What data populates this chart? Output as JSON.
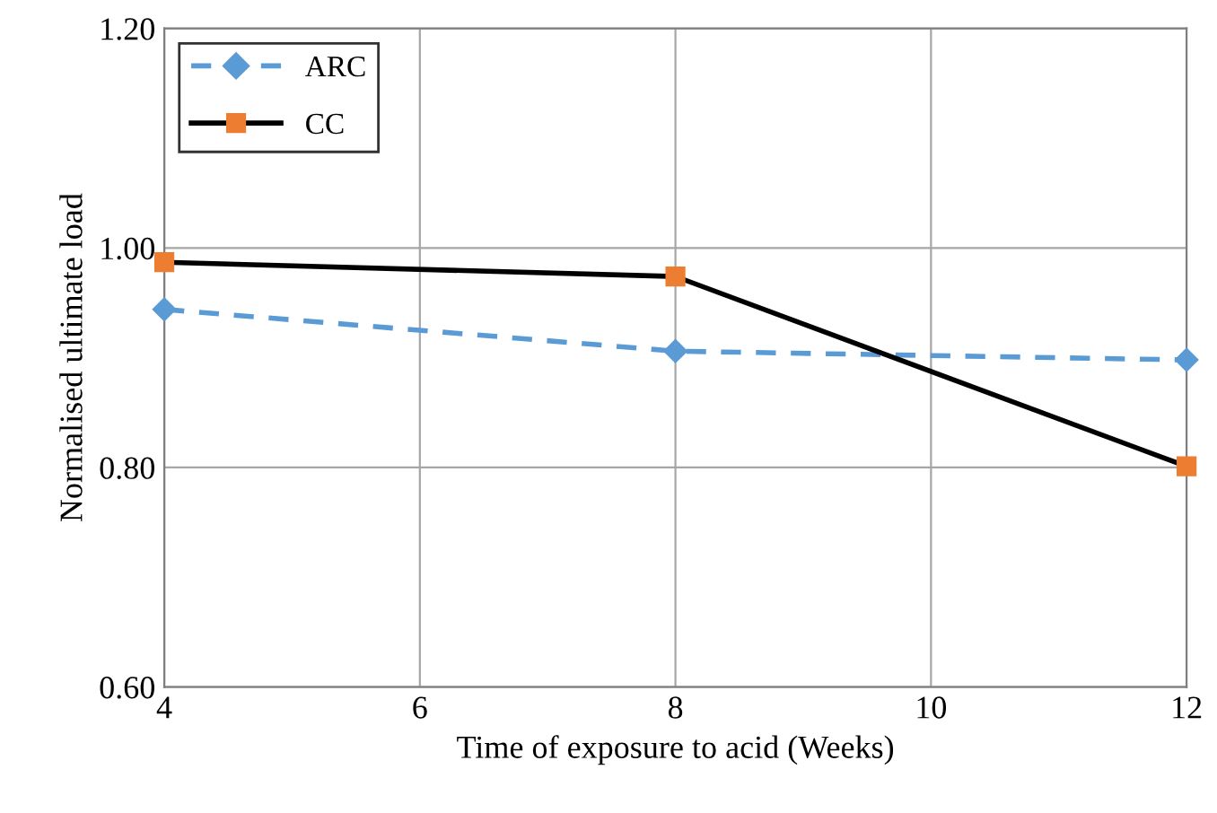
{
  "chart_data": {
    "type": "line",
    "xlabel": "Time of exposure to acid (Weeks)",
    "ylabel": "Normalised ultimate load",
    "x": [
      4,
      8,
      12
    ],
    "series": [
      {
        "name": "ARC",
        "color": "#5b9bd5",
        "values": [
          0.944,
          0.906,
          0.898
        ],
        "marker": "diamond",
        "line_style": "dashed"
      },
      {
        "name": "CC",
        "color": "#000000",
        "colors": [
          "#ed7d31",
          "#ed7d31",
          "#ed7d31"
        ],
        "values": [
          0.987,
          0.974,
          0.801
        ],
        "marker": "square",
        "line_style": "solid"
      }
    ],
    "xlim": [
      4,
      12
    ],
    "xticks": [
      4,
      6,
      8,
      10,
      12
    ],
    "ylim": [
      0.6,
      1.2
    ],
    "yticks": [
      {
        "value": 0.6,
        "label": "0.60"
      },
      {
        "value": 0.8,
        "label": "0.80"
      },
      {
        "value": 1.0,
        "label": "1.00"
      },
      {
        "value": 1.2,
        "label": "1.20"
      }
    ],
    "grid": true,
    "legend": "top left"
  }
}
